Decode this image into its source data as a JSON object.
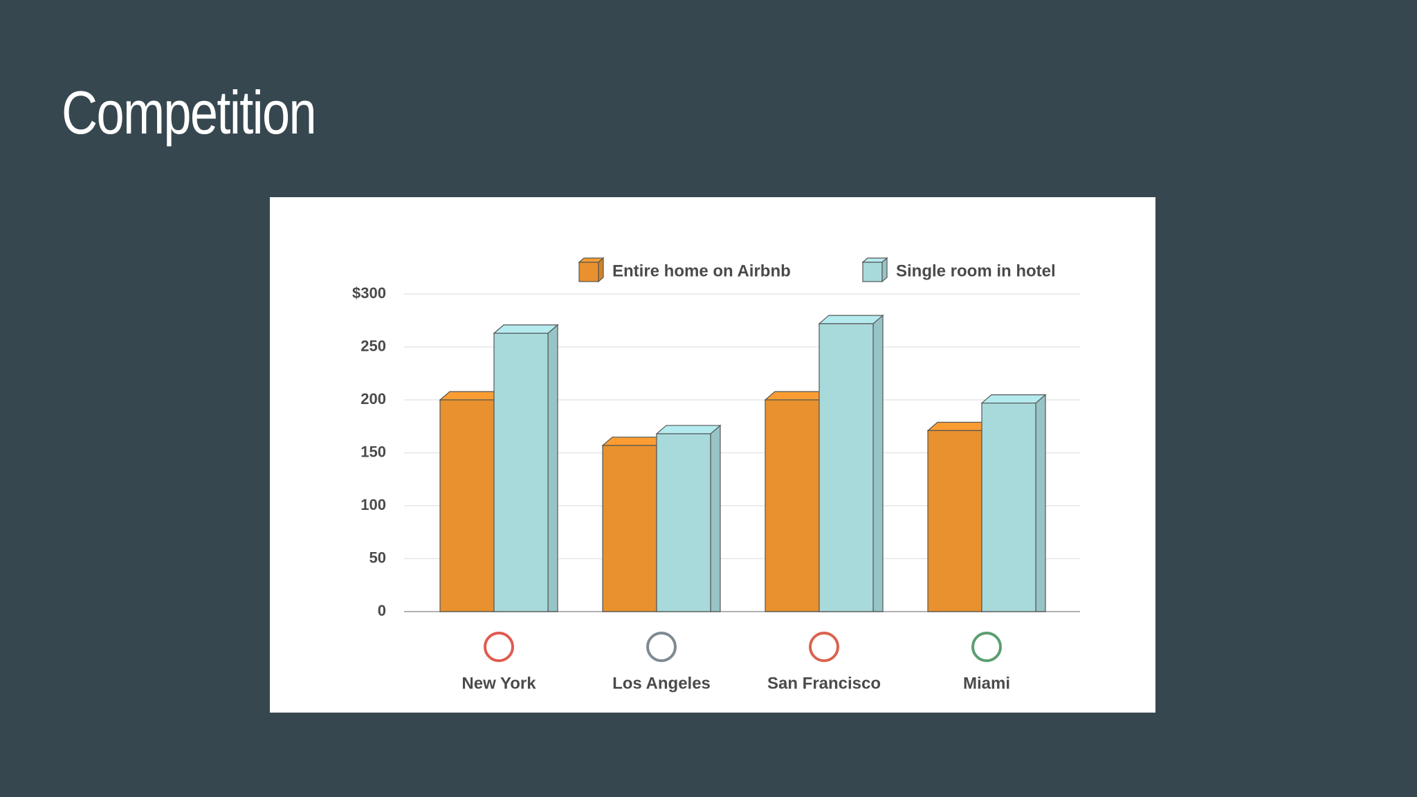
{
  "slide_title": "Competition",
  "chart_data": {
    "type": "bar",
    "categories": [
      "New York",
      "Los Angeles",
      "San Francisco",
      "Miami"
    ],
    "series": [
      {
        "name": "Entire home on Airbnb",
        "color": "#e8912e",
        "values": [
          200,
          157,
          200,
          171
        ]
      },
      {
        "name": "Single room in hotel",
        "color": "#a8dadc",
        "values": [
          263,
          168,
          272,
          197
        ]
      }
    ],
    "ylim": [
      0,
      300
    ],
    "yticks": [
      0,
      50,
      100,
      150,
      200,
      250,
      {
        "value": 300,
        "label": "$300"
      }
    ],
    "grid": true,
    "legend": "top-right"
  }
}
